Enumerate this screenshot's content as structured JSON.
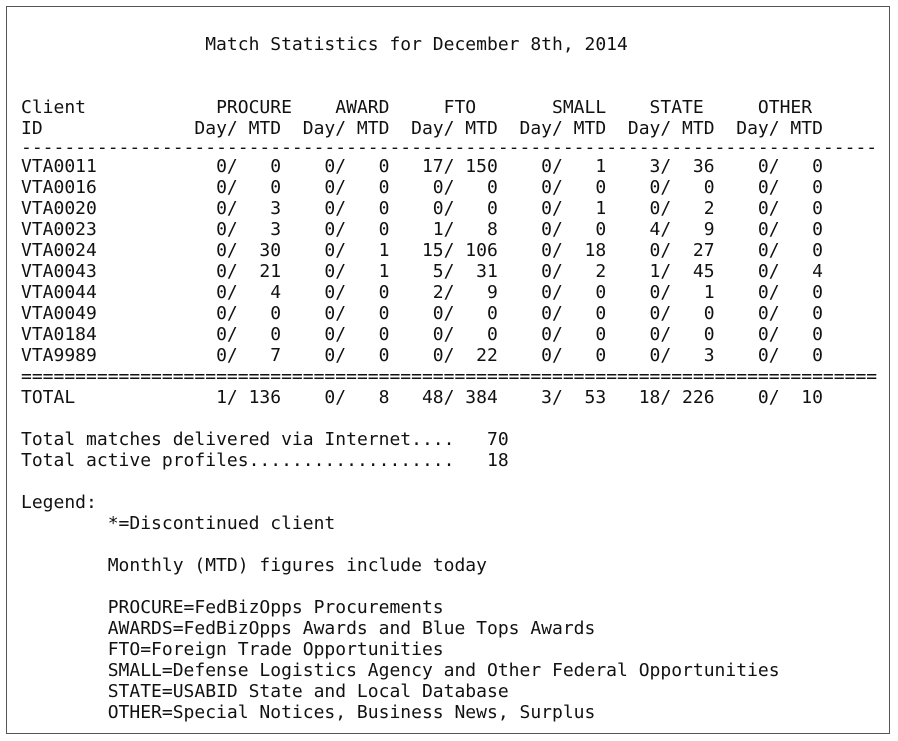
{
  "title": "Match Statistics for December 8th, 2014",
  "header": {
    "client_label": "Client",
    "id_label": "ID",
    "groups": [
      "PROCURE",
      "AWARD",
      "FTO",
      "SMALL",
      "STATE",
      "OTHER"
    ],
    "day_label": "Day/",
    "mtd_label": "MTD"
  },
  "rows": [
    {
      "id": "VTA0011",
      "values": [
        [
          0,
          0
        ],
        [
          0,
          0
        ],
        [
          17,
          150
        ],
        [
          0,
          1
        ],
        [
          3,
          36
        ],
        [
          0,
          0
        ]
      ]
    },
    {
      "id": "VTA0016",
      "values": [
        [
          0,
          0
        ],
        [
          0,
          0
        ],
        [
          0,
          0
        ],
        [
          0,
          0
        ],
        [
          0,
          0
        ],
        [
          0,
          0
        ]
      ]
    },
    {
      "id": "VTA0020",
      "values": [
        [
          0,
          3
        ],
        [
          0,
          0
        ],
        [
          0,
          0
        ],
        [
          0,
          1
        ],
        [
          0,
          2
        ],
        [
          0,
          0
        ]
      ]
    },
    {
      "id": "VTA0023",
      "values": [
        [
          0,
          3
        ],
        [
          0,
          0
        ],
        [
          1,
          8
        ],
        [
          0,
          0
        ],
        [
          4,
          9
        ],
        [
          0,
          0
        ]
      ]
    },
    {
      "id": "VTA0024",
      "values": [
        [
          0,
          30
        ],
        [
          0,
          1
        ],
        [
          15,
          106
        ],
        [
          0,
          18
        ],
        [
          0,
          27
        ],
        [
          0,
          0
        ]
      ]
    },
    {
      "id": "VTA0043",
      "values": [
        [
          0,
          21
        ],
        [
          0,
          1
        ],
        [
          5,
          31
        ],
        [
          0,
          2
        ],
        [
          1,
          45
        ],
        [
          0,
          4
        ]
      ]
    },
    {
      "id": "VTA0044",
      "values": [
        [
          0,
          4
        ],
        [
          0,
          0
        ],
        [
          2,
          9
        ],
        [
          0,
          0
        ],
        [
          0,
          1
        ],
        [
          0,
          0
        ]
      ]
    },
    {
      "id": "VTA0049",
      "values": [
        [
          0,
          0
        ],
        [
          0,
          0
        ],
        [
          0,
          0
        ],
        [
          0,
          0
        ],
        [
          0,
          0
        ],
        [
          0,
          0
        ]
      ]
    },
    {
      "id": "VTA0184",
      "values": [
        [
          0,
          0
        ],
        [
          0,
          0
        ],
        [
          0,
          0
        ],
        [
          0,
          0
        ],
        [
          0,
          0
        ],
        [
          0,
          0
        ]
      ]
    },
    {
      "id": "VTA9989",
      "values": [
        [
          0,
          7
        ],
        [
          0,
          0
        ],
        [
          0,
          22
        ],
        [
          0,
          0
        ],
        [
          0,
          3
        ],
        [
          0,
          0
        ]
      ]
    }
  ],
  "total": {
    "label": "TOTAL",
    "values": [
      [
        1,
        136
      ],
      [
        0,
        8
      ],
      [
        48,
        384
      ],
      [
        3,
        53
      ],
      [
        18,
        226
      ],
      [
        0,
        10
      ]
    ]
  },
  "summary": [
    {
      "label": "Total matches delivered via Internet....",
      "value": "70"
    },
    {
      "label": "Total active profiles...................",
      "value": "18"
    }
  ],
  "legend": {
    "title": "Legend:",
    "discontinued": "*=Discontinued client",
    "mtd_note": "Monthly (MTD) figures include today",
    "definitions": [
      "PROCURE=FedBizOpps Procurements",
      "AWARDS=FedBizOpps Awards and Blue Tops Awards",
      "FTO=Foreign Trade Opportunities",
      "SMALL=Defense Logistics Agency and Other Federal Opportunities",
      "STATE=USABID State and Local Database",
      "OTHER=Special Notices, Business News, Surplus"
    ]
  }
}
